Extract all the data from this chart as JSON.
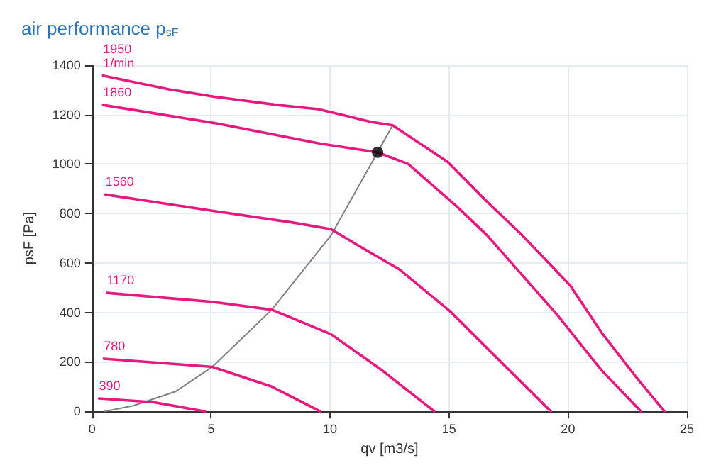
{
  "chart_data": {
    "type": "line",
    "title": "air performance p$_{sF}$",
    "xlabel": "qv [m3/s]",
    "ylabel": "psF [Pa]",
    "xlim": [
      0,
      25
    ],
    "xticks": [
      0,
      5,
      10,
      15,
      20,
      25
    ],
    "ylim": [
      0,
      1400
    ],
    "yticks": [
      0,
      200,
      400,
      600,
      800,
      1000,
      1200,
      1400
    ],
    "grid": true,
    "legend": false,
    "marker": "none",
    "line_style": "solid",
    "annotations": [
      "1/min"
    ],
    "series": [
      {
        "name": "1950",
        "color": "#e8197e",
        "x": [
          0.46,
          3.26,
          5.1,
          7.8,
          9.5,
          10.6,
          11.7,
          12.63,
          14.94,
          16.6,
          18.08,
          20.1,
          21.4,
          22.9,
          24.05
        ],
        "values": [
          1358,
          1302,
          1273,
          1239,
          1222,
          1197,
          1171,
          1157,
          1009,
          848,
          712,
          508,
          320,
          134,
          0
        ]
      },
      {
        "name": "1860",
        "color": "#e8197e",
        "x": [
          0.46,
          5.14,
          9.58,
          11.98,
          13.28,
          15.3,
          16.6,
          19.56,
          21.4,
          23.07
        ],
        "values": [
          1239,
          1166,
          1083,
          1048,
          1001,
          831,
          712,
          389,
          167,
          0
        ]
      },
      {
        "name": "1560",
        "color": "#e8197e",
        "x": [
          0.56,
          5.14,
          8.47,
          10.04,
          11.06,
          12.9,
          15.03,
          17.16,
          19.28
        ],
        "values": [
          877,
          810,
          763,
          737,
          678,
          575,
          406,
          202,
          0
        ]
      },
      {
        "name": "1170",
        "color": "#e8197e",
        "x": [
          0.62,
          5.05,
          7.55,
          10.04,
          12.17,
          14.38
        ],
        "values": [
          479,
          443,
          411,
          312,
          167,
          0
        ]
      },
      {
        "name": "780",
        "color": "#e8197e",
        "x": [
          0.49,
          5.05,
          7.55,
          9.58
        ],
        "values": [
          213,
          180,
          100,
          0
        ]
      },
      {
        "name": "390",
        "color": "#e8197e",
        "x": [
          0.29,
          2.56,
          4.74
        ],
        "values": [
          52,
          37,
          0
        ]
      },
      {
        "color": "#808080",
        "x": [
          0.53,
          1.73,
          3.5,
          5.05,
          7.55,
          10.04,
          12.0,
          12.63
        ],
        "values": [
          0,
          23,
          80,
          180,
          411,
          712,
          1048,
          1157
        ]
      },
      {
        "type": "scatter",
        "marker": "circle",
        "color": "#000000",
        "x": [
          12.0
        ],
        "values": [
          1048
        ]
      }
    ]
  }
}
